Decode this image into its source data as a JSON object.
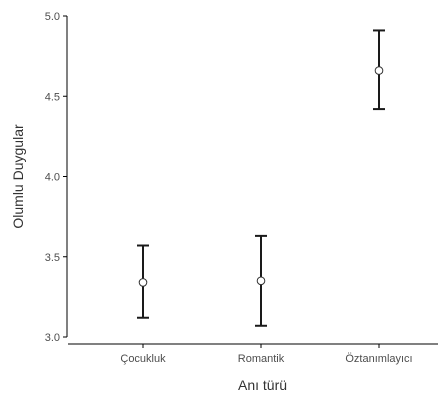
{
  "chart_data": {
    "type": "scatter",
    "categories": [
      "Çocukluk",
      "Romantik",
      "Öztanımlayıcı"
    ],
    "means": [
      3.34,
      3.35,
      4.66
    ],
    "ci_low": [
      3.12,
      3.07,
      4.42
    ],
    "ci_high": [
      3.57,
      3.63,
      4.91
    ],
    "xlabel": "Anı türü",
    "ylabel": "Olumlu Duygular",
    "ylim": [
      3.0,
      5.0
    ],
    "yticks": [
      "3.0",
      "3.5",
      "4.0",
      "4.5",
      "5.0"
    ],
    "grid": false,
    "legend": "none",
    "colors": {
      "axis": "#000000",
      "errorbar": "#1a1a1a",
      "point_fill": "#ffffff",
      "point_stroke": "#333333",
      "text": "#333333",
      "tick_label": "#4d4d4d"
    }
  }
}
